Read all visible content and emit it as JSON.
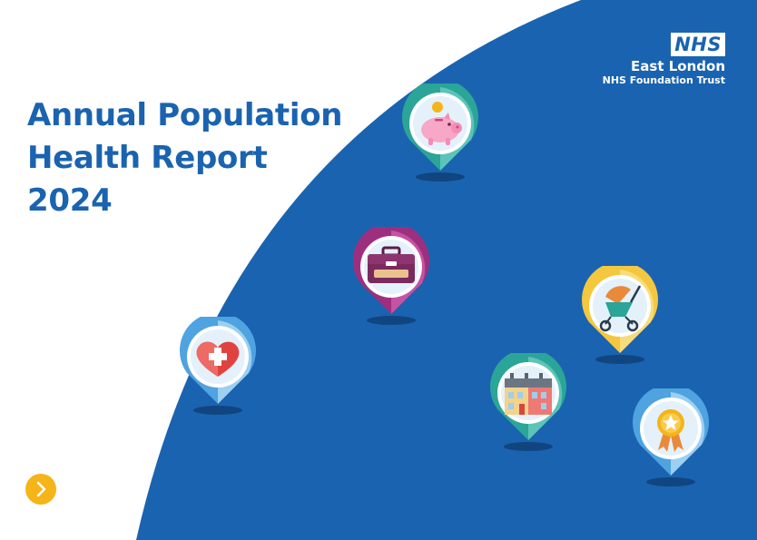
{
  "report": {
    "title_lines": [
      "Annual Population",
      "Health Report",
      "2024"
    ]
  },
  "logo": {
    "mark": "NHS",
    "line1": "East London",
    "line2": "NHS Foundation Trust"
  },
  "pins": [
    {
      "icon": "piggy-bank-icon",
      "ring": "#2aa597"
    },
    {
      "icon": "briefcase-icon",
      "ring": "#9e2f7f"
    },
    {
      "icon": "heart-cross-icon",
      "ring": "#4ea3e0"
    },
    {
      "icon": "pram-icon",
      "ring": "#f4c73e"
    },
    {
      "icon": "building-icon",
      "ring": "#2aa597"
    },
    {
      "icon": "award-rosette-icon",
      "ring": "#4ea3e0"
    }
  ],
  "navigation": {
    "next_icon": "chevron-right-icon",
    "accent": "#f5b418"
  },
  "colors": {
    "blue": "#1a63b0",
    "white": "#ffffff"
  }
}
